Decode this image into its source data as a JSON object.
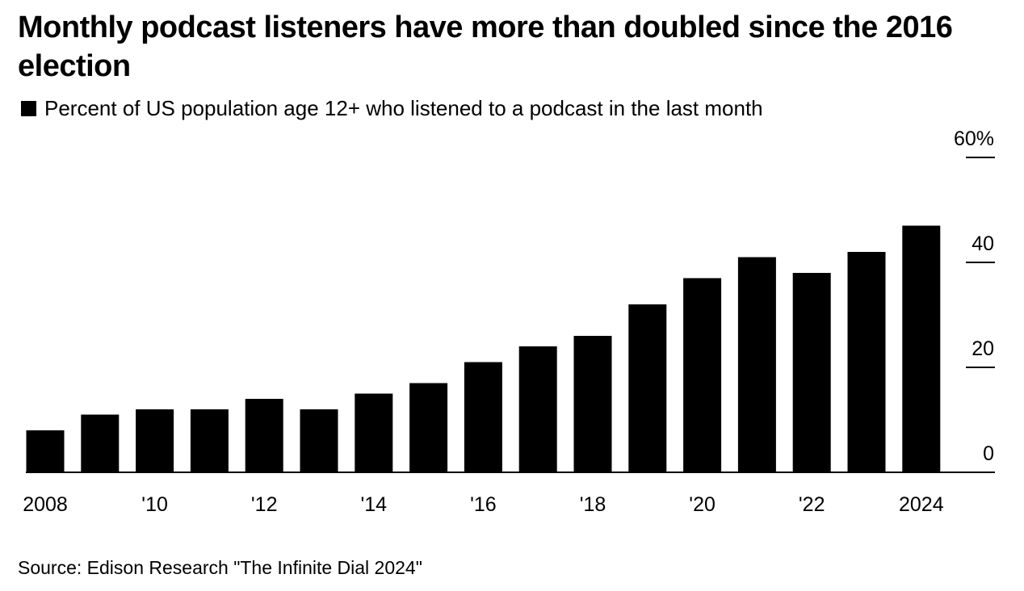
{
  "title": "Monthly podcast listeners have more than doubled since the 2016 election",
  "source": "Source: Edison Research \"The Infinite Dial 2024\"",
  "chart_data": {
    "type": "bar",
    "categories": [
      "2008",
      "2009",
      "2010",
      "2011",
      "2012",
      "2013",
      "2014",
      "2015",
      "2016",
      "2017",
      "2018",
      "2019",
      "2020",
      "2021",
      "2022",
      "2023",
      "2024"
    ],
    "x_tick_labels": [
      "2008",
      "",
      "'10",
      "",
      "'12",
      "",
      "'14",
      "",
      "'16",
      "",
      "'18",
      "",
      "'20",
      "",
      "'22",
      "",
      "2024"
    ],
    "series": [
      {
        "name": "Percent of US population age 12+ who listened to a podcast in the last month",
        "color": "#000000",
        "values": [
          8,
          11,
          12,
          12,
          14,
          12,
          15,
          17,
          21,
          24,
          26,
          32,
          37,
          41,
          38,
          42,
          47
        ]
      }
    ],
    "y_ticks": [
      "0",
      "20",
      "40",
      "60%"
    ],
    "ylim": [
      0,
      60
    ],
    "y_axis_position": "right",
    "grid": false,
    "legend_position": "top-left"
  }
}
